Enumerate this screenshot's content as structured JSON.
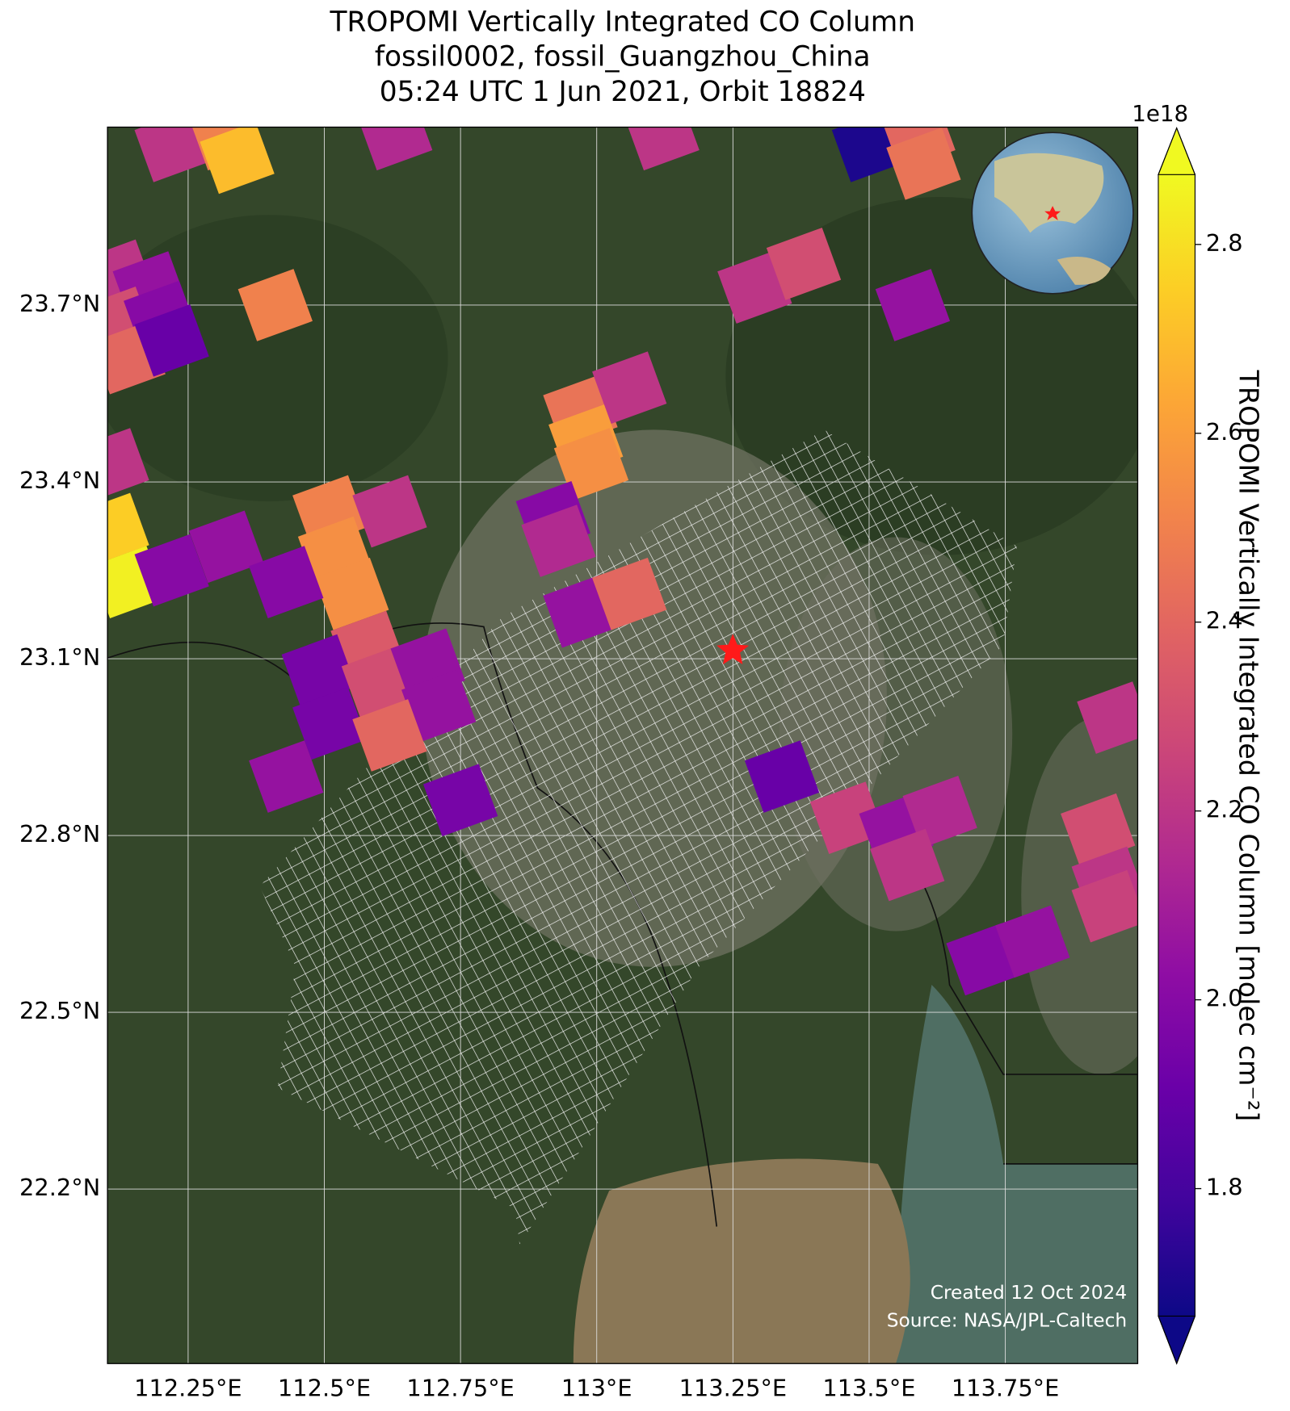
{
  "chart_data": {
    "type": "map",
    "title": [
      "TROPOMI Vertically Integrated CO Column",
      "fossil0002, fossil_Guangzhou_China",
      "05:24 UTC 1 Jun 2021, Orbit 18824"
    ],
    "xlim": [
      112.102,
      113.993
    ],
    "ylim": [
      21.904,
      24.002
    ],
    "xticks": [
      {
        "value": 112.25,
        "label": "112.25°E"
      },
      {
        "value": 112.5,
        "label": "112.5°E"
      },
      {
        "value": 112.75,
        "label": "112.75°E"
      },
      {
        "value": 113,
        "label": "113°E"
      },
      {
        "value": 113.25,
        "label": "113.25°E"
      },
      {
        "value": 113.5,
        "label": "113.5°E"
      },
      {
        "value": 113.75,
        "label": "113.75°E"
      }
    ],
    "yticks": [
      {
        "value": 23.7,
        "label": "23.7°N"
      },
      {
        "value": 23.4,
        "label": "23.4°N"
      },
      {
        "value": 23.1,
        "label": "23.1°N"
      },
      {
        "value": 22.8,
        "label": "22.8°N"
      },
      {
        "value": 22.5,
        "label": "22.5°N"
      },
      {
        "value": 22.2,
        "label": "22.2°N"
      }
    ],
    "grid": true,
    "pixels": {
      "lon": [
        112.22,
        112.32,
        112.34,
        112.63,
        113.12,
        113.5,
        113.59,
        113.6,
        112.12,
        112.18,
        112.12,
        112.2,
        112.14,
        112.22,
        112.41,
        113.29,
        113.38,
        113.58,
        112.97,
        113.06,
        112.98,
        112.99,
        112.51,
        112.62,
        112.52,
        112.55,
        112.11,
        112.11,
        112.14,
        112.22,
        112.32,
        112.43,
        112.92,
        112.93,
        112.97,
        113.06,
        112.58,
        112.49,
        112.6,
        112.69,
        112.51,
        112.71,
        112.62,
        112.43,
        112.75,
        113.34,
        113.46,
        113.55,
        113.63,
        113.57,
        113.71,
        113.8,
        113.95,
        113.92,
        113.94,
        113.94
      ],
      "lat": [
        23.97,
        23.99,
        23.95,
        23.99,
        23.99,
        23.97,
        23.99,
        23.94,
        23.75,
        23.73,
        23.67,
        23.68,
        23.61,
        23.64,
        23.7,
        23.73,
        23.77,
        23.7,
        23.52,
        23.56,
        23.47,
        23.43,
        23.35,
        23.35,
        23.28,
        23.21,
        23.43,
        23.32,
        23.23,
        23.25,
        23.29,
        23.23,
        23.34,
        23.3,
        23.18,
        23.21,
        23.12,
        23.08,
        23.06,
        23.09,
        22.99,
        23.02,
        22.97,
        22.9,
        22.86,
        22.9,
        22.83,
        22.81,
        22.84,
        22.75,
        22.59,
        22.62,
        23.0,
        22.81,
        22.72,
        22.68
      ],
      "values": [
        2.2,
        2.5,
        2.7,
        2.15,
        2.2,
        1.7,
        2.4,
        2.45,
        2.2,
        2.05,
        2.3,
        2.0,
        2.4,
        1.9,
        2.5,
        2.2,
        2.3,
        2.05,
        2.45,
        2.2,
        2.6,
        2.55,
        2.5,
        2.2,
        2.55,
        2.55,
        2.2,
        2.75,
        2.85,
        2.0,
        2.05,
        2.0,
        2.0,
        2.15,
        2.05,
        2.4,
        2.35,
        1.95,
        2.3,
        2.05,
        1.95,
        2.05,
        2.4,
        2.05,
        1.95,
        1.9,
        2.25,
        2.05,
        2.15,
        2.2,
        2.0,
        2.05,
        2.2,
        2.3,
        2.2,
        2.25
      ]
    },
    "colormap": "plasma",
    "clim": [
      1.665,
      2.874
    ],
    "colorbar_ticks": [
      1.8,
      {
        "value": 2,
        "label": "2.0"
      },
      2.2,
      2.4,
      2.6,
      2.8
    ],
    "colorbar_offset": "1e18",
    "colorbar_label": "TROPOMI Vertically Integrated CO Column [molec cm⁻²]",
    "annotations": [
      "Created 12 Oct 2024",
      "Source: NASA/JPL-Caltech"
    ]
  }
}
